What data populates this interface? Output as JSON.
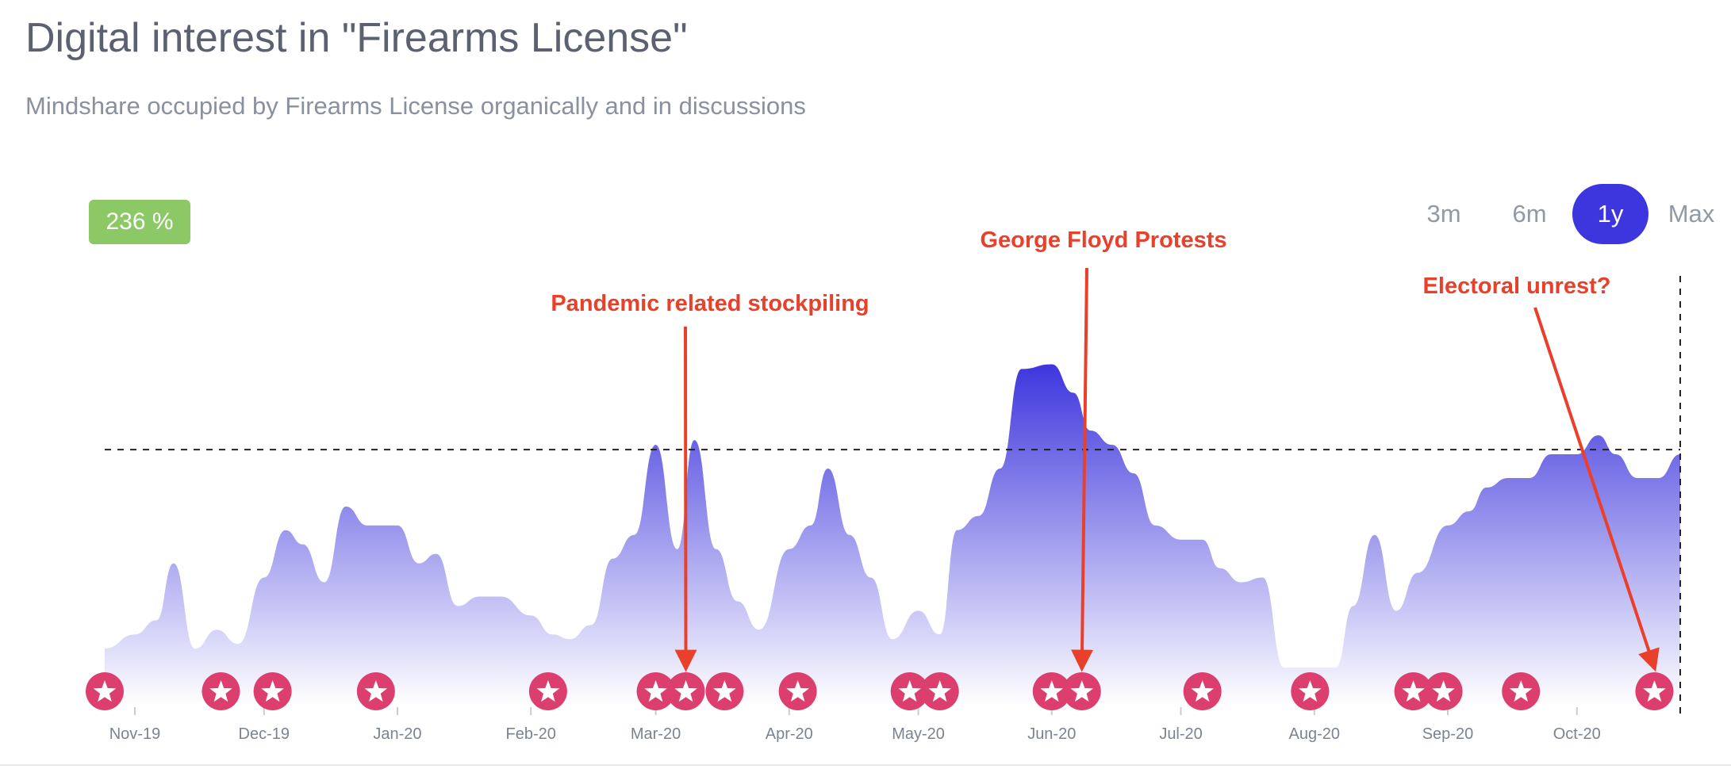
{
  "header": {
    "title": "Digital interest in \"Firearms License\"",
    "subtitle": "Mindshare occupied by Firearms License organically and in discussions"
  },
  "badge": {
    "text": "236 %",
    "color": "#8dc866"
  },
  "range_selector": {
    "options": [
      "3m",
      "6m",
      "1y",
      "Max"
    ],
    "selected": "1y",
    "active_color": "#3d35de"
  },
  "chart_data": {
    "type": "area",
    "x_ticks": [
      "Nov-19",
      "Dec-19",
      "Jan-20",
      "Feb-20",
      "Mar-20",
      "Apr-20",
      "May-20",
      "Jun-20",
      "Jul-20",
      "Aug-20",
      "Sep-20",
      "Oct-20"
    ],
    "x": [
      "2019-10-25",
      "2019-11-01",
      "2019-11-06",
      "2019-11-10",
      "2019-11-15",
      "2019-11-20",
      "2019-11-25",
      "2019-12-01",
      "2019-12-06",
      "2019-12-10",
      "2019-12-15",
      "2019-12-20",
      "2019-12-25",
      "2020-01-01",
      "2020-01-06",
      "2020-01-10",
      "2020-01-15",
      "2020-01-20",
      "2020-01-25",
      "2020-02-01",
      "2020-02-06",
      "2020-02-10",
      "2020-02-15",
      "2020-02-20",
      "2020-02-25",
      "2020-03-01",
      "2020-03-06",
      "2020-03-10",
      "2020-03-15",
      "2020-03-20",
      "2020-03-25",
      "2020-04-01",
      "2020-04-06",
      "2020-04-10",
      "2020-04-15",
      "2020-04-20",
      "2020-04-25",
      "2020-05-01",
      "2020-05-06",
      "2020-05-10",
      "2020-05-15",
      "2020-05-20",
      "2020-05-25",
      "2020-06-01",
      "2020-06-06",
      "2020-06-10",
      "2020-06-15",
      "2020-06-20",
      "2020-06-25",
      "2020-07-01",
      "2020-07-06",
      "2020-07-10",
      "2020-07-15",
      "2020-07-20",
      "2020-07-25",
      "2020-08-01",
      "2020-08-06",
      "2020-08-10",
      "2020-08-15",
      "2020-08-20",
      "2020-08-25",
      "2020-09-01",
      "2020-09-06",
      "2020-09-10",
      "2020-09-15",
      "2020-09-20",
      "2020-09-25",
      "2020-10-01",
      "2020-10-06",
      "2020-10-10",
      "2020-10-15",
      "2020-10-20",
      "2020-10-25"
    ],
    "values": [
      12,
      15,
      18,
      30,
      12,
      16,
      13,
      27,
      37,
      34,
      26,
      42,
      38,
      38,
      30,
      32,
      21,
      23,
      23,
      19,
      15,
      14,
      17,
      31,
      36,
      55,
      33,
      56,
      33,
      22,
      16,
      33,
      38,
      50,
      36,
      27,
      14,
      20,
      15,
      37,
      40,
      50,
      71,
      72,
      66,
      58,
      55,
      49,
      38,
      35,
      35,
      29,
      26,
      27,
      8,
      8,
      8,
      21,
      36,
      20,
      28,
      38,
      41,
      46,
      48,
      48,
      53,
      53,
      57,
      53,
      48,
      48,
      53
    ],
    "y_reference": 54,
    "ylim": [
      0,
      100
    ],
    "fill_colors": {
      "top": "#3e36dd",
      "bottom": "#ffffff"
    },
    "event_markers": [
      "2019-10-25",
      "2019-11-21",
      "2019-12-03",
      "2019-12-27",
      "2020-02-05",
      "2020-03-01",
      "2020-03-08",
      "2020-03-17",
      "2020-04-03",
      "2020-04-29",
      "2020-05-06",
      "2020-06-01",
      "2020-06-08",
      "2020-07-06",
      "2020-07-31",
      "2020-08-24",
      "2020-08-31",
      "2020-09-18",
      "2020-10-19"
    ],
    "marker_color": "#dc3f6e",
    "annotations": [
      {
        "text": "Pandemic related stockpiling",
        "target": "2020-03-08"
      },
      {
        "text": "George Floyd Protests",
        "target": "2020-06-08"
      },
      {
        "text": "Electoral unrest?",
        "target": "2020-10-19"
      }
    ],
    "annotation_color": "#e8402b"
  }
}
